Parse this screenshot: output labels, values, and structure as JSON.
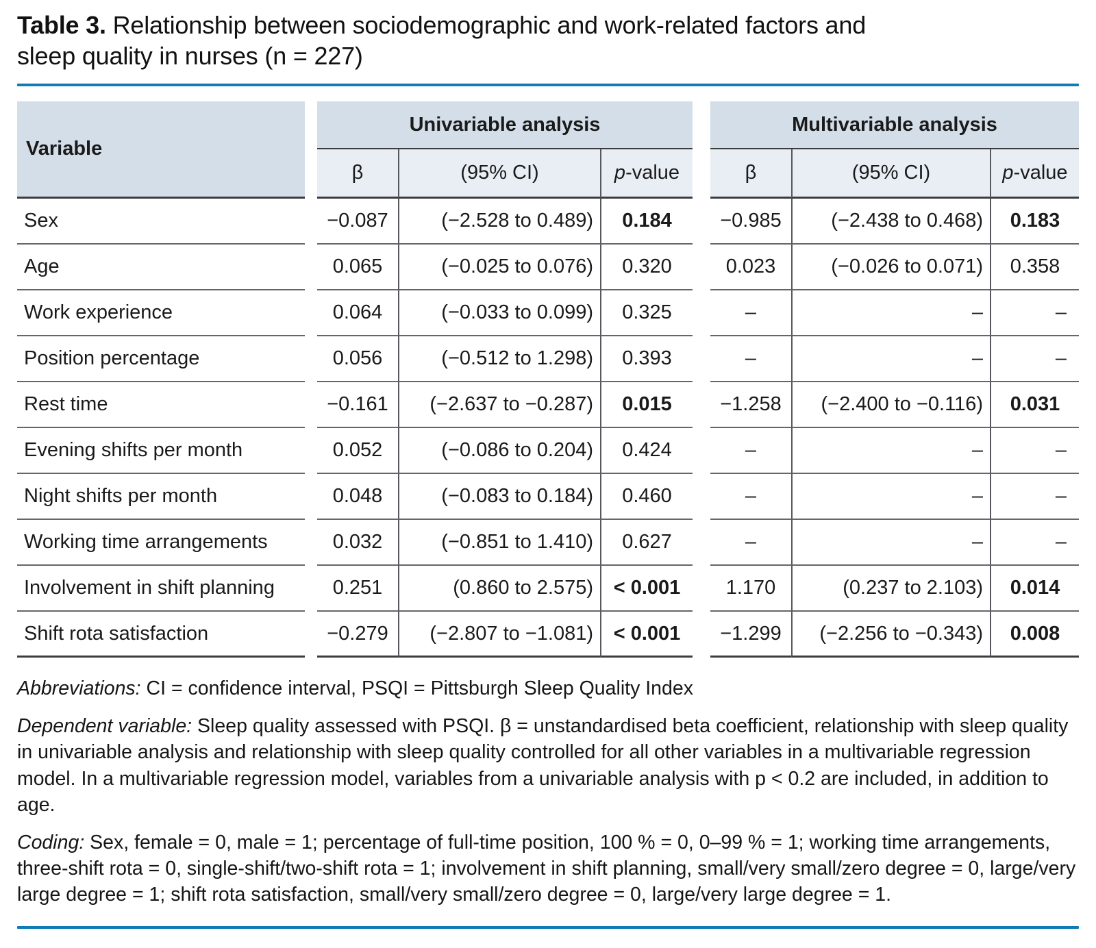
{
  "title": {
    "label": "Table 3.",
    "text": " Relationship between sociodemographic and work-related factors and sleep quality in nurses (n = 227)"
  },
  "colors": {
    "accent_rule": "#0f7db5",
    "header_band_bg": "#d3dee9",
    "subheader_bg": "#e8eef4"
  },
  "table": {
    "variable_header": "Variable",
    "uni_header": "Univariable analysis",
    "multi_header": "Multivariable analysis",
    "col_beta": "β",
    "col_ci": "(95% CI)",
    "col_p_italic": "p",
    "col_p_rest": "-value",
    "rows": [
      {
        "variable": "Sex",
        "u_beta": "−0.087",
        "u_ci": "(−2.528 to 0.489)",
        "u_p": "0.184",
        "u_p_bold": true,
        "m_beta": "−0.985",
        "m_ci": "(−2.438 to 0.468)",
        "m_p": "0.183",
        "m_p_bold": true
      },
      {
        "variable": "Age",
        "u_beta": "0.065",
        "u_ci": "(−0.025 to 0.076)",
        "u_p": "0.320",
        "u_p_bold": false,
        "m_beta": "0.023",
        "m_ci": "(−0.026 to 0.071)",
        "m_p": "0.358",
        "m_p_bold": false
      },
      {
        "variable": "Work experience",
        "u_beta": "0.064",
        "u_ci": "(−0.033 to 0.099)",
        "u_p": "0.325",
        "u_p_bold": false,
        "m_beta": "–",
        "m_ci": "–",
        "m_p": "–",
        "m_p_bold": false
      },
      {
        "variable": "Position percentage",
        "u_beta": "0.056",
        "u_ci": "(−0.512 to 1.298)",
        "u_p": "0.393",
        "u_p_bold": false,
        "m_beta": "–",
        "m_ci": "–",
        "m_p": "–",
        "m_p_bold": false
      },
      {
        "variable": "Rest time",
        "u_beta": "−0.161",
        "u_ci": "(−2.637 to −0.287)",
        "u_p": "0.015",
        "u_p_bold": true,
        "m_beta": "−1.258",
        "m_ci": "(−2.400 to −0.116)",
        "m_p": "0.031",
        "m_p_bold": true
      },
      {
        "variable": "Evening shifts per month",
        "u_beta": "0.052",
        "u_ci": "(−0.086 to 0.204)",
        "u_p": "0.424",
        "u_p_bold": false,
        "m_beta": "–",
        "m_ci": "–",
        "m_p": "–",
        "m_p_bold": false
      },
      {
        "variable": "Night shifts per month",
        "u_beta": "0.048",
        "u_ci": "(−0.083 to 0.184)",
        "u_p": "0.460",
        "u_p_bold": false,
        "m_beta": "–",
        "m_ci": "–",
        "m_p": "–",
        "m_p_bold": false
      },
      {
        "variable": "Working time arrangements",
        "u_beta": "0.032",
        "u_ci": "(−0.851 to 1.410)",
        "u_p": "0.627",
        "u_p_bold": false,
        "m_beta": "–",
        "m_ci": "–",
        "m_p": "–",
        "m_p_bold": false
      },
      {
        "variable": "Involvement in shift planning",
        "u_beta": "0.251",
        "u_ci": "(0.860 to 2.575)",
        "u_p": "< 0.001",
        "u_p_bold": true,
        "m_beta": "1.170",
        "m_ci": "(0.237 to 2.103)",
        "m_p": "0.014",
        "m_p_bold": true
      },
      {
        "variable": "Shift rota satisfaction",
        "u_beta": "−0.279",
        "u_ci": "(−2.807 to −1.081)",
        "u_p": "< 0.001",
        "u_p_bold": true,
        "m_beta": "−1.299",
        "m_ci": "(−2.256 to −0.343)",
        "m_p": "0.008",
        "m_p_bold": true
      }
    ]
  },
  "footnotes": [
    {
      "lead": "Abbreviations:",
      "text": " CI = confidence interval, PSQI = Pittsburgh Sleep Quality Index"
    },
    {
      "lead": "Dependent variable:",
      "text": " Sleep quality assessed with PSQI. β = unstandardised beta coefficient, relationship with sleep quality in univariable analysis and relationship with sleep quality controlled for all other variables in a multivariable regression model. In a multivariable regression model, variables from a univariable analysis with p < 0.2 are included, in addition to age."
    },
    {
      "lead": "Coding:",
      "text": " Sex, female = 0, male = 1; percentage of full-time position, 100 % = 0, 0–99 % = 1; working time arrangements, three-shift rota = 0, single-shift/two-shift rota = 1; involvement in shift planning, small/very small/zero degree = 0, large/very large degree = 1; shift rota satisfaction, small/very small/zero degree = 0, large/very large degree = 1."
    }
  ]
}
